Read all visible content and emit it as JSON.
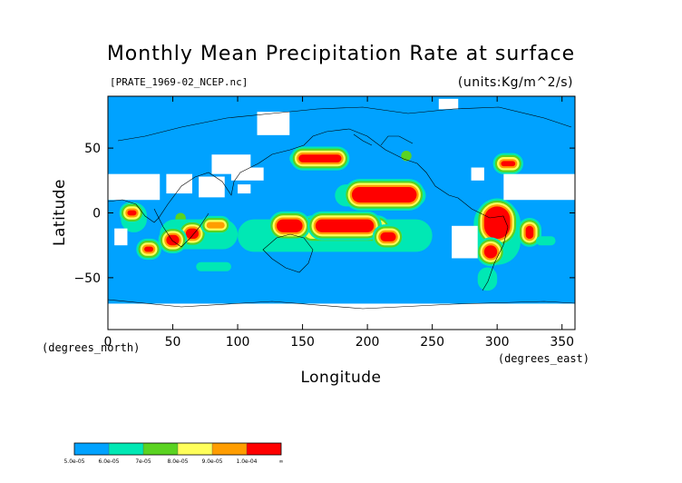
{
  "chart_data": {
    "type": "heatmap",
    "title": "Monthly Mean Precipitation Rate at surface",
    "source_label": "[PRATE_1969-02_NCEP.nc]",
    "units_label": "(units:Kg/m^2/s)",
    "xlabel": "Longitude",
    "ylabel": "Latitude",
    "x_unit_label": "(degrees_east)",
    "y_unit_label": "(degrees_north)",
    "xlim": [
      0,
      360
    ],
    "ylim": [
      -90,
      90
    ],
    "x_ticks": [
      0,
      50,
      100,
      150,
      200,
      250,
      300,
      350
    ],
    "y_ticks": [
      -50,
      0,
      50
    ],
    "x_tick_labels": [
      "0",
      "50",
      "100",
      "150",
      "200",
      "250",
      "300",
      "350"
    ],
    "y_tick_labels": [
      "−50",
      "0",
      "50"
    ],
    "background_color": "#00a2ff",
    "colorbar": {
      "labels": [
        "5.0e-05",
        "6.0e-05",
        "7e-05",
        "8.0e-05",
        "9.0e-05",
        "1.0e-04",
        "∞"
      ],
      "colors": [
        "#00a2ff",
        "#00e8b4",
        "#5ad321",
        "#ffff5a",
        "#ff9d00",
        "#ff0000"
      ]
    },
    "regions": [
      {
        "band": 1,
        "lon": [
          140,
          185
        ],
        "lat": [
          37,
          47
        ]
      },
      {
        "band": 5,
        "lon": [
          147,
          180
        ],
        "lat": [
          39,
          45
        ]
      },
      {
        "band": 1,
        "lon": [
          300,
          318
        ],
        "lat": [
          34,
          42
        ]
      },
      {
        "band": 5,
        "lon": [
          303,
          314
        ],
        "lat": [
          36,
          40
        ]
      },
      {
        "band": 2,
        "lon": [
          226,
          234
        ],
        "lat": [
          40,
          48
        ]
      },
      {
        "band": 2,
        "lon": [
          52,
          60
        ],
        "lat": [
          -10,
          0
        ]
      },
      {
        "band": 1,
        "lon": [
          40,
          100
        ],
        "lat": [
          -28,
          -5
        ]
      },
      {
        "band": 5,
        "lon": [
          60,
          70
        ],
        "lat": [
          -20,
          -12
        ]
      },
      {
        "band": 5,
        "lon": [
          45,
          55
        ],
        "lat": [
          -25,
          -17
        ]
      },
      {
        "band": 4,
        "lon": [
          76,
          90
        ],
        "lat": [
          -12,
          -7
        ]
      },
      {
        "band": 1,
        "lon": [
          100,
          250
        ],
        "lat": [
          -30,
          -5
        ]
      },
      {
        "band": 3,
        "lon": [
          150,
          215
        ],
        "lat": [
          -20,
          -5
        ]
      },
      {
        "band": 5,
        "lon": [
          130,
          150
        ],
        "lat": [
          -15,
          -5
        ]
      },
      {
        "band": 5,
        "lon": [
          160,
          205
        ],
        "lat": [
          -15,
          -5
        ]
      },
      {
        "band": 5,
        "lon": [
          210,
          222
        ],
        "lat": [
          -22,
          -15
        ]
      },
      {
        "band": 1,
        "lon": [
          175,
          245
        ],
        "lat": [
          5,
          22
        ]
      },
      {
        "band": 5,
        "lon": [
          188,
          238
        ],
        "lat": [
          8,
          20
        ]
      },
      {
        "band": 1,
        "lon": [
          10,
          30
        ],
        "lat": [
          -15,
          8
        ]
      },
      {
        "band": 5,
        "lon": [
          15,
          22
        ],
        "lat": [
          -2,
          2
        ]
      },
      {
        "band": 5,
        "lon": [
          28,
          35
        ],
        "lat": [
          -30,
          -26
        ]
      },
      {
        "band": 1,
        "lon": [
          282,
          318
        ],
        "lat": [
          -40,
          10
        ]
      },
      {
        "band": 5,
        "lon": [
          290,
          310
        ],
        "lat": [
          -20,
          5
        ]
      },
      {
        "band": 5,
        "lon": [
          290,
          300
        ],
        "lat": [
          -35,
          -25
        ]
      },
      {
        "band": 5,
        "lon": [
          322,
          328
        ],
        "lat": [
          -20,
          -10
        ]
      },
      {
        "band": 1,
        "lon": [
          68,
          95
        ],
        "lat": [
          -45,
          -38
        ]
      },
      {
        "band": 1,
        "lon": [
          330,
          345
        ],
        "lat": [
          -25,
          -18
        ]
      },
      {
        "band": 1,
        "lon": [
          285,
          300
        ],
        "lat": [
          -60,
          -42
        ]
      }
    ],
    "missing": [
      {
        "lon": [
          0,
          40
        ],
        "lat": [
          10,
          30
        ]
      },
      {
        "lon": [
          45,
          65
        ],
        "lat": [
          15,
          30
        ]
      },
      {
        "lon": [
          70,
          90
        ],
        "lat": [
          12,
          28
        ]
      },
      {
        "lon": [
          80,
          110
        ],
        "lat": [
          30,
          45
        ]
      },
      {
        "lon": [
          95,
          120
        ],
        "lat": [
          25,
          35
        ]
      },
      {
        "lon": [
          100,
          110
        ],
        "lat": [
          15,
          22
        ]
      },
      {
        "lon": [
          115,
          140
        ],
        "lat": [
          60,
          78
        ]
      },
      {
        "lon": [
          255,
          270
        ],
        "lat": [
          80,
          88
        ]
      },
      {
        "lon": [
          305,
          360
        ],
        "lat": [
          10,
          30
        ]
      },
      {
        "lon": [
          0,
          360
        ],
        "lat": [
          -90,
          -70
        ]
      },
      {
        "lon": [
          5,
          15
        ],
        "lat": [
          -25,
          -12
        ]
      },
      {
        "lon": [
          265,
          285
        ],
        "lat": [
          -35,
          -10
        ]
      },
      {
        "lon": [
          280,
          290
        ],
        "lat": [
          25,
          35
        ]
      }
    ]
  }
}
